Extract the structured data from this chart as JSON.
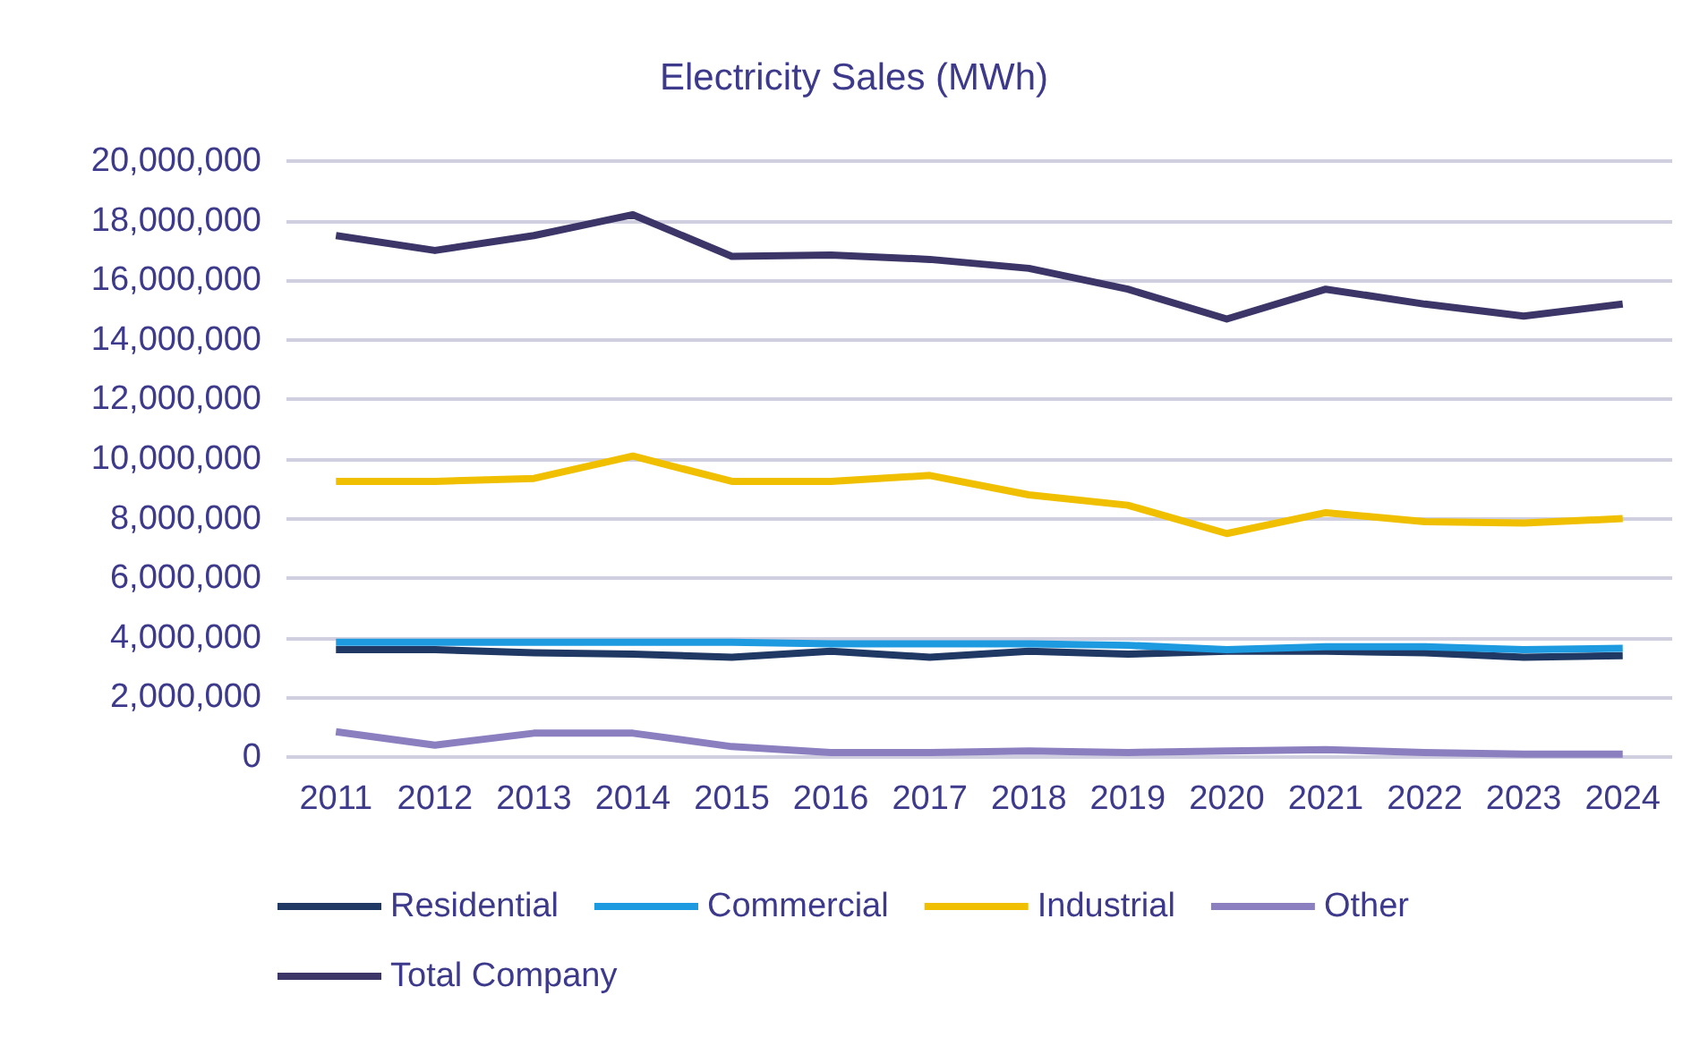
{
  "chart_data": {
    "type": "line",
    "title": "Electricity Sales (MWh)",
    "categories": [
      "2011",
      "2012",
      "2013",
      "2014",
      "2015",
      "2016",
      "2017",
      "2018",
      "2019",
      "2020",
      "2021",
      "2022",
      "2023",
      "2024"
    ],
    "series": [
      {
        "name": "Residential",
        "color": "#1f3864",
        "values": [
          3600000,
          3600000,
          3500000,
          3450000,
          3350000,
          3550000,
          3350000,
          3550000,
          3450000,
          3550000,
          3550000,
          3500000,
          3350000,
          3400000
        ]
      },
      {
        "name": "Commercial",
        "color": "#1e9be0",
        "values": [
          3850000,
          3850000,
          3850000,
          3850000,
          3850000,
          3800000,
          3800000,
          3800000,
          3750000,
          3600000,
          3700000,
          3700000,
          3600000,
          3650000
        ]
      },
      {
        "name": "Industrial",
        "color": "#f0c000",
        "values": [
          9250000,
          9250000,
          9350000,
          10100000,
          9250000,
          9250000,
          9450000,
          8800000,
          8450000,
          7500000,
          8200000,
          7900000,
          7850000,
          8000000
        ]
      },
      {
        "name": "Other",
        "color": "#8c7fc0",
        "values": [
          850000,
          400000,
          800000,
          800000,
          350000,
          150000,
          150000,
          200000,
          150000,
          200000,
          250000,
          150000,
          100000,
          100000
        ]
      },
      {
        "name": "Total Company",
        "color": "#3b3568",
        "values": [
          17500000,
          17000000,
          17500000,
          18200000,
          16800000,
          16850000,
          16700000,
          16400000,
          15700000,
          14700000,
          15700000,
          15200000,
          14800000,
          15200000
        ]
      }
    ],
    "ylim": [
      0,
      20000000
    ],
    "yticks": [
      0,
      {
        "value": 2000000,
        "label": "2,000,000"
      },
      {
        "value": 4000000,
        "label": "4,000,000"
      },
      {
        "value": 6000000,
        "label": "6,000,000"
      },
      {
        "value": 8000000,
        "label": "8,000,000"
      },
      {
        "value": 10000000,
        "label": "10,000,000"
      },
      {
        "value": 12000000,
        "label": "12,000,000"
      },
      {
        "value": 14000000,
        "label": "14,000,000"
      },
      {
        "value": 16000000,
        "label": "16,000,000"
      },
      {
        "value": 18000000,
        "label": "18,000,000"
      },
      {
        "value": 20000000,
        "label": "20,000,000"
      }
    ],
    "grid": "y",
    "legend": "bottom",
    "marker": "none",
    "line_style": "solid"
  }
}
